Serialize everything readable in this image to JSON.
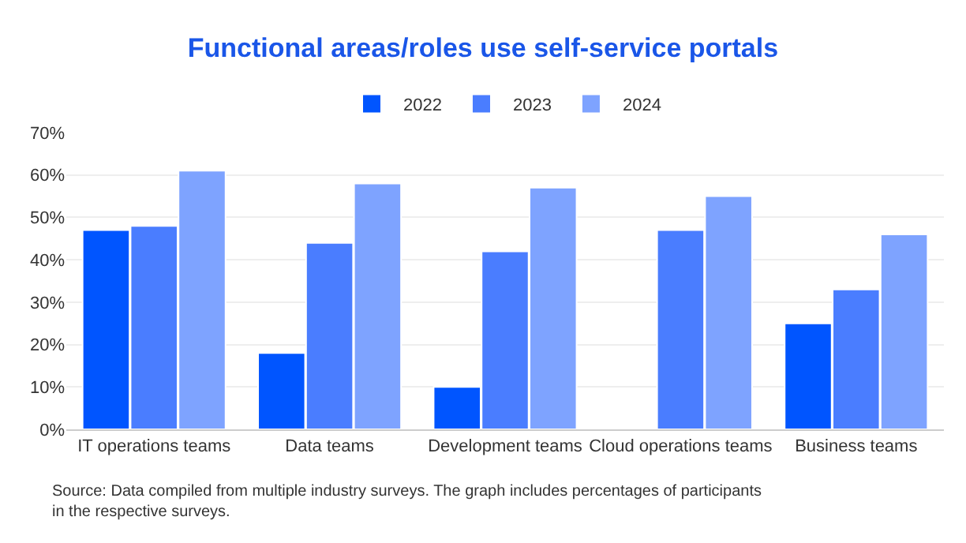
{
  "chart_data": {
    "type": "bar",
    "title": "Functional areas/roles use self-service portals",
    "categories": [
      "IT operations teams",
      "Data teams",
      "Development teams",
      "Cloud operations teams",
      "Business teams"
    ],
    "series": [
      {
        "name": "2022",
        "color": "#0055ff",
        "values": [
          47,
          18,
          10,
          null,
          25
        ]
      },
      {
        "name": "2023",
        "color": "#4a7dff",
        "values": [
          48,
          44,
          42,
          47,
          33
        ]
      },
      {
        "name": "2024",
        "color": "#7ea3ff",
        "values": [
          61,
          58,
          57,
          55,
          46
        ]
      }
    ],
    "ylim": [
      0,
      70
    ],
    "yticks": [
      {
        "value": 0,
        "label": "0%"
      },
      {
        "value": 10,
        "label": "10%"
      },
      {
        "value": 20,
        "label": "20%"
      },
      {
        "value": 30,
        "label": "30%"
      },
      {
        "value": 40,
        "label": "40%"
      },
      {
        "value": 50,
        "label": "50%"
      },
      {
        "value": 60,
        "label": "60%"
      },
      {
        "value": 70,
        "label": "70%"
      }
    ],
    "grid": "y",
    "legend": "top",
    "annotations": [
      "Source: Data compiled from multiple industry surveys. The graph includes percentages of participants\nin the respective surveys."
    ]
  }
}
